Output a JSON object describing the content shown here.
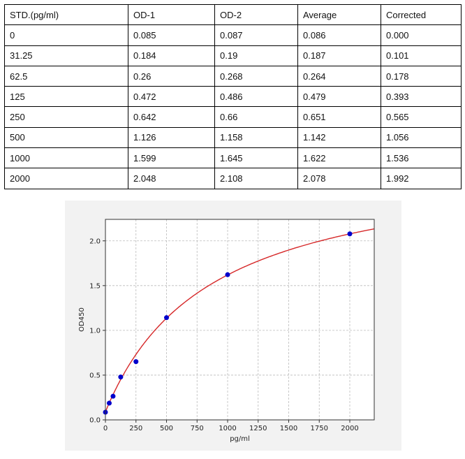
{
  "table": {
    "headers": [
      "STD.(pg/ml)",
      "OD-1",
      "OD-2",
      "Average",
      "Corrected"
    ],
    "rows": [
      [
        "0",
        "0.085",
        "0.087",
        "0.086",
        "0.000"
      ],
      [
        "31.25",
        "0.184",
        "0.19",
        "0.187",
        "0.101"
      ],
      [
        "62.5",
        "0.26",
        "0.268",
        "0.264",
        "0.178"
      ],
      [
        "125",
        "0.472",
        "0.486",
        "0.479",
        "0.393"
      ],
      [
        "250",
        "0.642",
        "0.66",
        "0.651",
        "0.565"
      ],
      [
        "500",
        "1.126",
        "1.158",
        "1.142",
        "1.056"
      ],
      [
        "1000",
        "1.599",
        "1.645",
        "1.622",
        "1.536"
      ],
      [
        "2000",
        "2.048",
        "2.108",
        "2.078",
        "1.992"
      ]
    ]
  },
  "chart_data": {
    "type": "scatter",
    "xlabel": "pg/ml",
    "ylabel": "OD450",
    "xlim": [
      0,
      2200
    ],
    "ylim": [
      0,
      2.24
    ],
    "xticks": [
      "0",
      "250",
      "500",
      "750",
      "1000",
      "1250",
      "1500",
      "1750",
      "2000"
    ],
    "yticks": [
      "0.0",
      "0.5",
      "1.0",
      "1.5",
      "2.0"
    ],
    "grid": true,
    "points": {
      "x": [
        0,
        31.25,
        62.5,
        125,
        250,
        500,
        1000,
        2000
      ],
      "y": [
        0.086,
        0.187,
        0.264,
        0.479,
        0.651,
        1.142,
        1.622,
        2.078
      ],
      "color": "#0000cc"
    },
    "fit_curve": {
      "color": "#d62728"
    }
  }
}
